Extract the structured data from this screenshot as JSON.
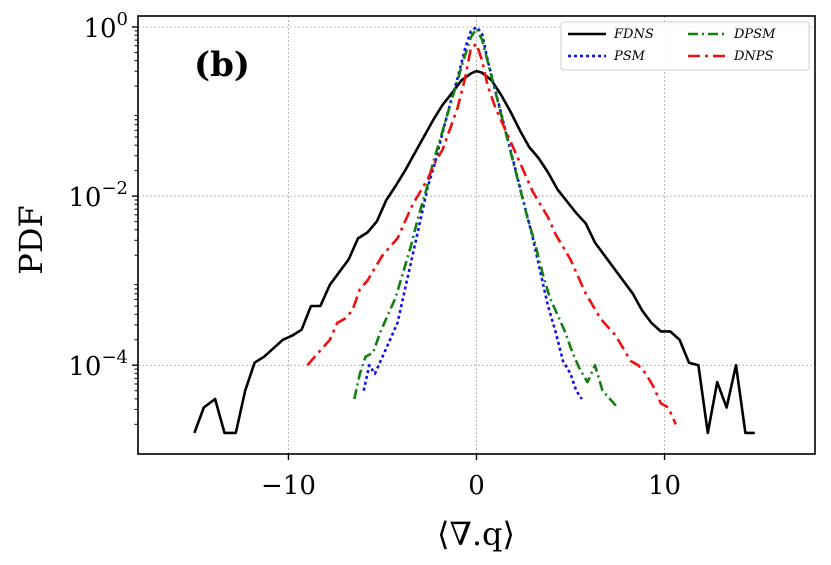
{
  "chart_data": {
    "type": "line",
    "panel_label": "(b)",
    "xlabel": "⟨∇.q⟩",
    "ylabel": "PDF",
    "xlim": [
      -18,
      18
    ],
    "ylim_log10": [
      -5.05,
      0.13
    ],
    "yscale": "log",
    "grid": true,
    "legend_position": "top-right",
    "x_ticks": [
      {
        "value": -10,
        "label": "−10"
      },
      {
        "value": 0,
        "label": "0"
      },
      {
        "value": 10,
        "label": "10"
      }
    ],
    "y_ticks": [
      {
        "exp": 0,
        "base": "10",
        "sup": "0"
      },
      {
        "exp": -2,
        "base": "10",
        "sup": "−2"
      },
      {
        "exp": -4,
        "base": "10",
        "sup": "−4"
      }
    ],
    "series": [
      {
        "name": "FDNS",
        "color": "#000000",
        "dash": "",
        "width": 2.6,
        "x": [
          -15,
          -14.5,
          -13.9,
          -13.4,
          -12.8,
          -12.3,
          -11.8,
          -11.3,
          -10.8,
          -10.3,
          -9.8,
          -9.3,
          -8.8,
          -8.3,
          -7.8,
          -7.3,
          -6.8,
          -6.3,
          -5.8,
          -5.3,
          -4.8,
          -4.3,
          -3.8,
          -3.3,
          -2.8,
          -2.3,
          -1.8,
          -1.3,
          -0.8,
          -0.3,
          0,
          0.3,
          0.8,
          1.3,
          1.8,
          2.3,
          2.8,
          3.3,
          3.8,
          4.3,
          4.8,
          5.3,
          5.8,
          6.3,
          6.8,
          7.3,
          7.8,
          8.3,
          8.8,
          9.3,
          9.8,
          10.3,
          10.8,
          11.3,
          11.8,
          12.3,
          12.8,
          13.3,
          13.8,
          14.3,
          14.8
        ],
        "log10y": [
          -4.8,
          -4.5,
          -4.4,
          -4.8,
          -4.8,
          -4.3,
          -3.97,
          -3.9,
          -3.8,
          -3.7,
          -3.65,
          -3.58,
          -3.3,
          -3.3,
          -3.05,
          -2.9,
          -2.75,
          -2.5,
          -2.43,
          -2.3,
          -2.05,
          -1.88,
          -1.7,
          -1.5,
          -1.3,
          -1.1,
          -0.92,
          -0.78,
          -0.63,
          -0.55,
          -0.52,
          -0.54,
          -0.63,
          -0.8,
          -1.0,
          -1.22,
          -1.42,
          -1.55,
          -1.72,
          -1.92,
          -2.06,
          -2.2,
          -2.32,
          -2.55,
          -2.7,
          -2.85,
          -3.0,
          -3.15,
          -3.35,
          -3.5,
          -3.6,
          -3.6,
          -3.7,
          -3.97,
          -4.0,
          -4.8,
          -4.2,
          -4.5,
          -4.0,
          -4.8,
          -4.8
        ]
      },
      {
        "name": "PSM",
        "color": "#1010ee",
        "dash": "3,3",
        "width": 2.6,
        "x": [
          -6.0,
          -5.7,
          -5.4,
          -5.0,
          -4.6,
          -4.2,
          -3.8,
          -3.4,
          -3.0,
          -2.6,
          -2.2,
          -1.8,
          -1.4,
          -1.0,
          -0.6,
          -0.3,
          0,
          0.3,
          0.6,
          1.0,
          1.4,
          1.8,
          2.2,
          2.6,
          3.0,
          3.4,
          3.8,
          4.2,
          4.6,
          5.0,
          5.3,
          5.6
        ],
        "log10y": [
          -4.3,
          -4.0,
          -4.1,
          -3.9,
          -3.7,
          -3.5,
          -3.1,
          -2.7,
          -2.3,
          -1.9,
          -1.6,
          -1.25,
          -0.9,
          -0.6,
          -0.25,
          -0.05,
          0.0,
          -0.08,
          -0.4,
          -0.75,
          -1.1,
          -1.45,
          -1.8,
          -2.15,
          -2.5,
          -2.9,
          -3.3,
          -3.6,
          -3.95,
          -4.1,
          -4.3,
          -4.4
        ]
      },
      {
        "name": "DPSM",
        "color": "#118011",
        "dash": "10,4,2,4",
        "width": 2.6,
        "x": [
          -6.5,
          -6.2,
          -5.9,
          -5.5,
          -5.1,
          -4.7,
          -4.3,
          -3.9,
          -3.5,
          -3.1,
          -2.7,
          -2.3,
          -1.9,
          -1.5,
          -1.1,
          -0.7,
          -0.3,
          0,
          0.3,
          0.7,
          1.1,
          1.5,
          1.9,
          2.3,
          2.7,
          3.1,
          3.5,
          3.9,
          4.3,
          4.7,
          5.1,
          5.5,
          5.9,
          6.3,
          6.7,
          7.1,
          7.5
        ],
        "log10y": [
          -4.4,
          -4.1,
          -3.9,
          -3.85,
          -3.6,
          -3.4,
          -3.2,
          -2.9,
          -2.6,
          -2.25,
          -1.95,
          -1.6,
          -1.3,
          -1.0,
          -0.7,
          -0.4,
          -0.12,
          -0.02,
          -0.15,
          -0.5,
          -0.85,
          -1.2,
          -1.55,
          -1.9,
          -2.25,
          -2.55,
          -2.9,
          -3.2,
          -3.4,
          -3.6,
          -3.85,
          -4.05,
          -4.2,
          -4.0,
          -4.3,
          -4.4,
          -4.5
        ]
      },
      {
        "name": "DNPS",
        "color": "#ee1010",
        "dash": "12,5,3,5",
        "width": 2.6,
        "x": [
          -9.0,
          -8.6,
          -8.2,
          -7.8,
          -7.4,
          -7.0,
          -6.6,
          -6.2,
          -5.8,
          -5.4,
          -5.0,
          -4.6,
          -4.2,
          -3.8,
          -3.4,
          -3.0,
          -2.6,
          -2.2,
          -1.8,
          -1.4,
          -1.0,
          -0.6,
          -0.3,
          0,
          0.3,
          0.6,
          1.0,
          1.4,
          1.8,
          2.2,
          2.6,
          3.0,
          3.4,
          3.8,
          4.2,
          4.6,
          5.0,
          5.4,
          5.8,
          6.2,
          6.6,
          7.0,
          7.4,
          7.8,
          8.2,
          8.6,
          9.0,
          9.4,
          9.8,
          10.2,
          10.6
        ],
        "log10y": [
          -4.0,
          -3.9,
          -3.8,
          -3.7,
          -3.5,
          -3.45,
          -3.35,
          -3.1,
          -3.0,
          -2.85,
          -2.7,
          -2.6,
          -2.5,
          -2.3,
          -2.1,
          -1.95,
          -1.8,
          -1.6,
          -1.45,
          -1.2,
          -0.95,
          -0.6,
          -0.25,
          -0.2,
          -0.4,
          -0.7,
          -0.95,
          -1.15,
          -1.35,
          -1.55,
          -1.75,
          -1.95,
          -2.1,
          -2.25,
          -2.45,
          -2.6,
          -2.75,
          -2.95,
          -3.15,
          -3.3,
          -3.45,
          -3.55,
          -3.65,
          -3.8,
          -3.95,
          -4.0,
          -4.1,
          -4.25,
          -4.45,
          -4.5,
          -4.7
        ]
      }
    ],
    "legend": [
      {
        "label": "FDNS",
        "series": 0
      },
      {
        "label": "PSM",
        "series": 1
      },
      {
        "label": "DPSM",
        "series": 2
      },
      {
        "label": "DNPS",
        "series": 3
      }
    ]
  }
}
